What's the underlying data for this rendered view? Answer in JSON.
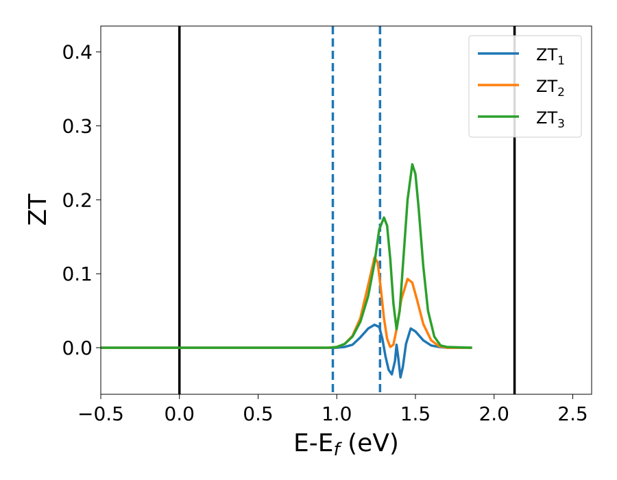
{
  "chart_data": {
    "type": "line",
    "xlabel": "E-E",
    "xlabel_subscript": "f",
    "xlabel_unit": " (eV)",
    "ylabel": "ZT",
    "xlim": [
      -0.5,
      2.62
    ],
    "ylim": [
      -0.063,
      0.435
    ],
    "xticks": [
      -0.5,
      0.0,
      0.5,
      1.0,
      1.5,
      2.0,
      2.5
    ],
    "xtick_labels": [
      "−0.5",
      "0.0",
      "0.5",
      "1.0",
      "1.5",
      "2.0",
      "2.5"
    ],
    "yticks": [
      0.0,
      0.1,
      0.2,
      0.3,
      0.4
    ],
    "ytick_labels": [
      "0.0",
      "0.1",
      "0.2",
      "0.3",
      "0.4"
    ],
    "grid": false,
    "legend_position": "top-right",
    "vlines": [
      {
        "x": 0.0,
        "style": "solid",
        "color": "#000000"
      },
      {
        "x": 2.13,
        "style": "solid",
        "color": "#000000"
      },
      {
        "x": 0.975,
        "style": "dashed",
        "color": "#1f77b4"
      },
      {
        "x": 1.275,
        "style": "dashed",
        "color": "#1f77b4"
      }
    ],
    "series": [
      {
        "name": "ZT",
        "subscript": "1",
        "color": "#1f77b4",
        "points": [
          [
            -0.5,
            0
          ],
          [
            1.0,
            0
          ],
          [
            1.05,
            0.001
          ],
          [
            1.1,
            0.004
          ],
          [
            1.15,
            0.014
          ],
          [
            1.2,
            0.026
          ],
          [
            1.24,
            0.031
          ],
          [
            1.27,
            0.028
          ],
          [
            1.29,
            0.012
          ],
          [
            1.31,
            -0.012
          ],
          [
            1.33,
            -0.03
          ],
          [
            1.35,
            -0.036
          ],
          [
            1.37,
            -0.018
          ],
          [
            1.38,
            0.004
          ],
          [
            1.39,
            -0.012
          ],
          [
            1.405,
            -0.04
          ],
          [
            1.42,
            -0.026
          ],
          [
            1.44,
            0.005
          ],
          [
            1.47,
            0.026
          ],
          [
            1.5,
            0.022
          ],
          [
            1.55,
            0.01
          ],
          [
            1.6,
            0.003
          ],
          [
            1.65,
            0.001
          ],
          [
            1.7,
            0
          ],
          [
            1.86,
            0
          ]
        ]
      },
      {
        "name": "ZT",
        "subscript": "2",
        "color": "#ff7f0e",
        "points": [
          [
            -0.5,
            0
          ],
          [
            0.95,
            0
          ],
          [
            1.0,
            0.001
          ],
          [
            1.05,
            0.005
          ],
          [
            1.1,
            0.016
          ],
          [
            1.15,
            0.04
          ],
          [
            1.2,
            0.085
          ],
          [
            1.24,
            0.122
          ],
          [
            1.26,
            0.115
          ],
          [
            1.28,
            0.08
          ],
          [
            1.3,
            0.04
          ],
          [
            1.32,
            0.012
          ],
          [
            1.34,
            0.001
          ],
          [
            1.36,
            0.004
          ],
          [
            1.38,
            0.025
          ],
          [
            1.41,
            0.065
          ],
          [
            1.45,
            0.093
          ],
          [
            1.48,
            0.088
          ],
          [
            1.51,
            0.065
          ],
          [
            1.55,
            0.032
          ],
          [
            1.6,
            0.01
          ],
          [
            1.65,
            0.002
          ],
          [
            1.7,
            0
          ],
          [
            1.86,
            0
          ]
        ]
      },
      {
        "name": "ZT",
        "subscript": "3",
        "color": "#2ca02c",
        "points": [
          [
            -0.5,
            0
          ],
          [
            0.95,
            0
          ],
          [
            1.0,
            0.001
          ],
          [
            1.05,
            0.005
          ],
          [
            1.1,
            0.015
          ],
          [
            1.15,
            0.035
          ],
          [
            1.2,
            0.07
          ],
          [
            1.24,
            0.115
          ],
          [
            1.27,
            0.16
          ],
          [
            1.3,
            0.176
          ],
          [
            1.32,
            0.165
          ],
          [
            1.34,
            0.12
          ],
          [
            1.36,
            0.06
          ],
          [
            1.38,
            0.025
          ],
          [
            1.4,
            0.05
          ],
          [
            1.42,
            0.11
          ],
          [
            1.45,
            0.2
          ],
          [
            1.48,
            0.248
          ],
          [
            1.5,
            0.235
          ],
          [
            1.52,
            0.19
          ],
          [
            1.55,
            0.11
          ],
          [
            1.58,
            0.05
          ],
          [
            1.62,
            0.015
          ],
          [
            1.66,
            0.003
          ],
          [
            1.7,
            0.001
          ],
          [
            1.86,
            0
          ]
        ]
      }
    ]
  }
}
